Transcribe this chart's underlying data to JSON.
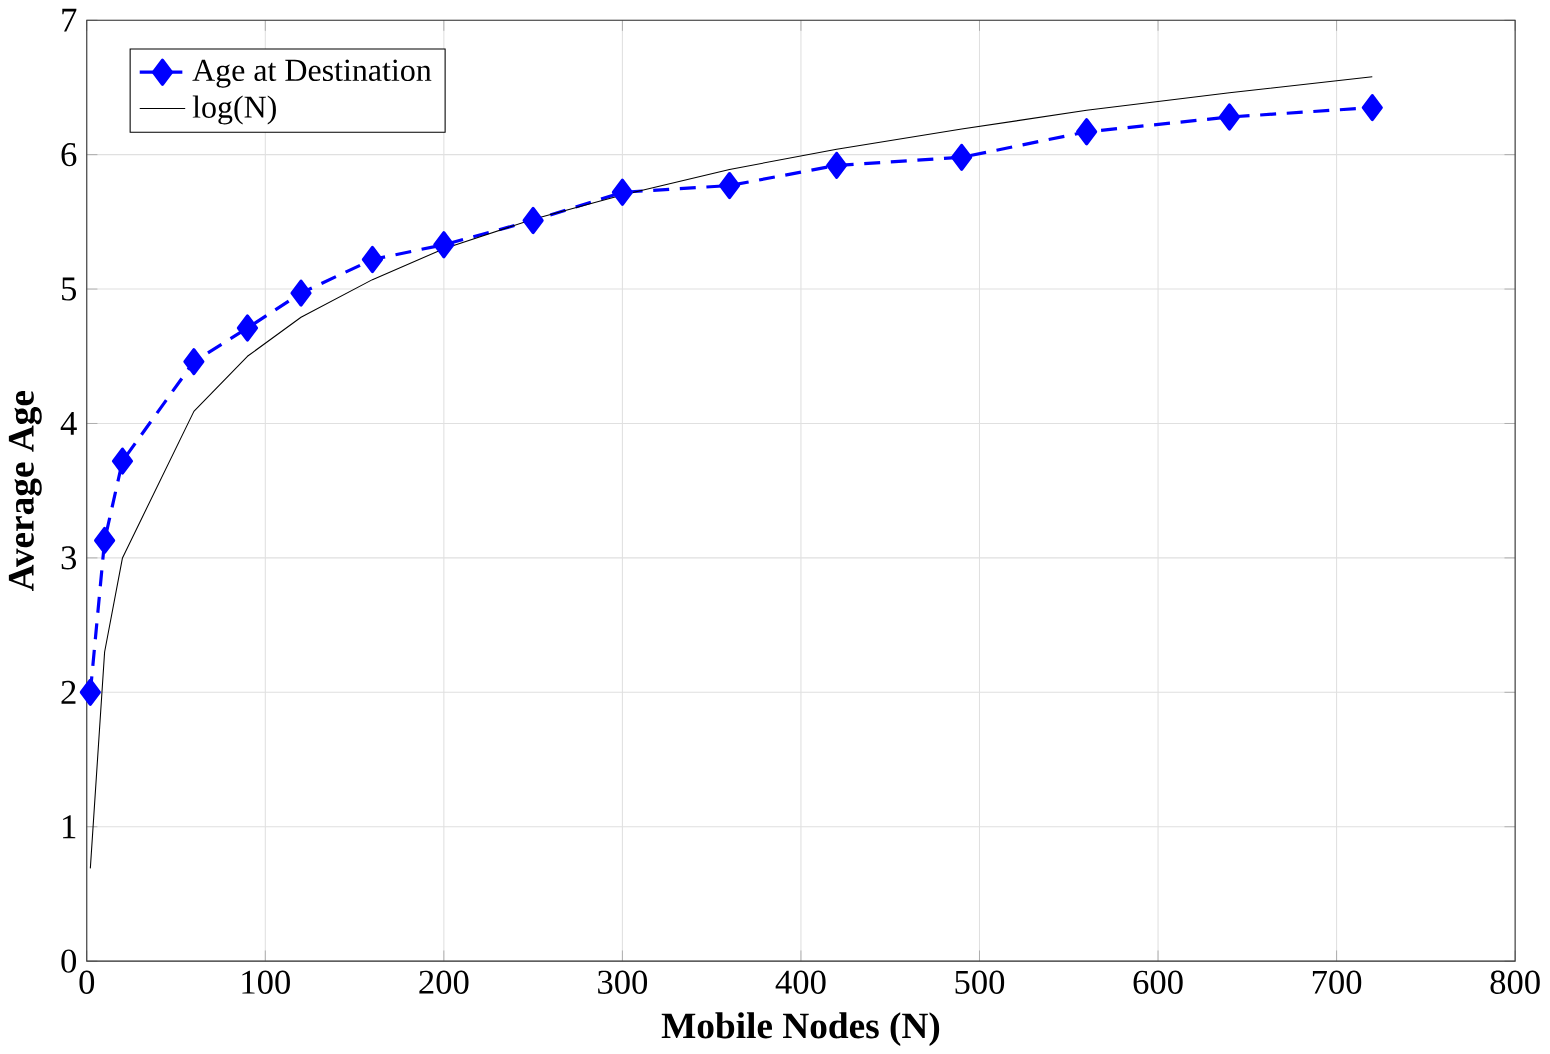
{
  "chart_data": {
    "type": "line",
    "xlabel": "Mobile Nodes (N)",
    "ylabel": "Average Age",
    "xlim": [
      0,
      800
    ],
    "ylim": [
      0,
      7
    ],
    "xticks": [
      0,
      100,
      200,
      300,
      400,
      500,
      600,
      700,
      800
    ],
    "yticks": [
      0,
      1,
      2,
      3,
      4,
      5,
      6,
      7
    ],
    "grid": true,
    "legend": "top left",
    "series": [
      {
        "name": "Age at Destination",
        "color": "#0000ff",
        "marker": "diamond",
        "line_style": "dashed",
        "x": [
          2,
          10,
          20,
          60,
          90,
          120,
          160,
          200,
          250,
          300,
          360,
          420,
          490,
          560,
          640,
          720
        ],
        "values": [
          2.0,
          3.13,
          3.72,
          4.46,
          4.71,
          4.97,
          5.22,
          5.33,
          5.51,
          5.72,
          5.77,
          5.92,
          5.98,
          6.17,
          6.28,
          6.35
        ]
      },
      {
        "name": "log(N)",
        "color": "#000000",
        "marker": "none",
        "line_style": "solid",
        "x": [
          2,
          10,
          20,
          60,
          90,
          120,
          160,
          200,
          250,
          300,
          360,
          420,
          490,
          560,
          640,
          720
        ],
        "values": [
          0.69,
          2.3,
          3.0,
          4.09,
          4.5,
          4.79,
          5.07,
          5.3,
          5.52,
          5.7,
          5.89,
          6.04,
          6.19,
          6.33,
          6.46,
          6.58
        ]
      }
    ]
  }
}
